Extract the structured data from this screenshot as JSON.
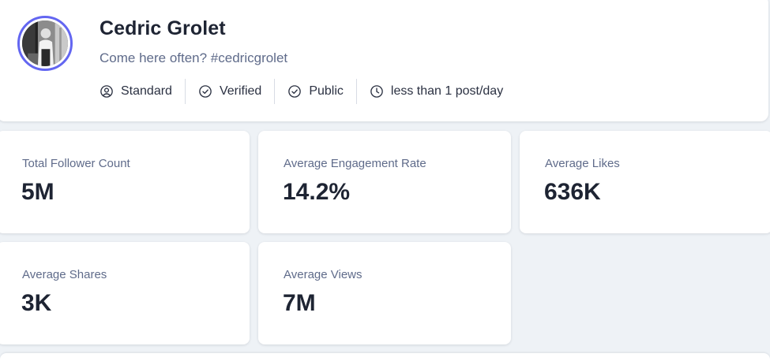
{
  "profile": {
    "name": "Cedric Grolet",
    "bio": "Come here often? #cedricgrolet",
    "avatar_icon": "profile-photo",
    "accent_color": "#6366f1",
    "meta": [
      {
        "label": "Standard",
        "icon": "user-circle-icon"
      },
      {
        "label": "Verified",
        "icon": "check-circle-icon"
      },
      {
        "label": "Public",
        "icon": "check-circle-icon"
      },
      {
        "label": "less than 1 post/day",
        "icon": "clock-icon"
      }
    ]
  },
  "stats": [
    {
      "label": "Total Follower Count",
      "value": "5M"
    },
    {
      "label": "Average Engagement Rate",
      "value": "14.2%"
    },
    {
      "label": "Average Likes",
      "value": "636K"
    },
    {
      "label": "Average Shares",
      "value": "3K"
    },
    {
      "label": "Average Views",
      "value": "7M"
    }
  ]
}
